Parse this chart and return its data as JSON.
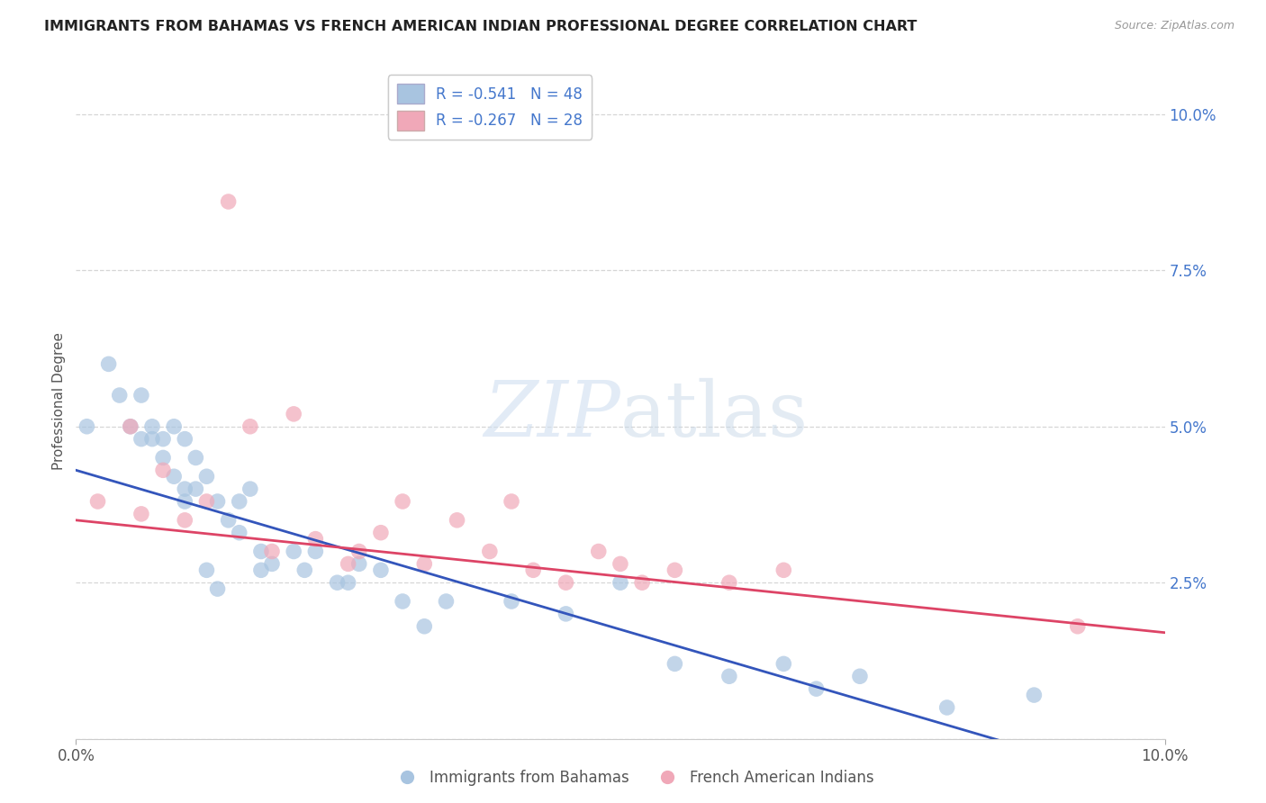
{
  "title": "IMMIGRANTS FROM BAHAMAS VS FRENCH AMERICAN INDIAN PROFESSIONAL DEGREE CORRELATION CHART",
  "source": "Source: ZipAtlas.com",
  "ylabel": "Professional Degree",
  "blue_R": -0.541,
  "blue_N": 48,
  "pink_R": -0.267,
  "pink_N": 28,
  "blue_color": "#a8c4e0",
  "pink_color": "#f0a8b8",
  "blue_line_color": "#3355bb",
  "pink_line_color": "#dd4466",
  "legend_label_blue": "Immigrants from Bahamas",
  "legend_label_pink": "French American Indians",
  "blue_scatter_x": [
    0.001,
    0.003,
    0.004,
    0.005,
    0.006,
    0.006,
    0.007,
    0.007,
    0.008,
    0.008,
    0.009,
    0.009,
    0.01,
    0.01,
    0.01,
    0.011,
    0.011,
    0.012,
    0.012,
    0.013,
    0.013,
    0.014,
    0.015,
    0.015,
    0.016,
    0.017,
    0.017,
    0.018,
    0.02,
    0.021,
    0.022,
    0.024,
    0.025,
    0.026,
    0.028,
    0.03,
    0.032,
    0.034,
    0.04,
    0.045,
    0.05,
    0.055,
    0.06,
    0.065,
    0.068,
    0.072,
    0.08,
    0.088
  ],
  "blue_scatter_y": [
    0.05,
    0.06,
    0.055,
    0.05,
    0.048,
    0.055,
    0.048,
    0.05,
    0.048,
    0.045,
    0.05,
    0.042,
    0.048,
    0.04,
    0.038,
    0.045,
    0.04,
    0.042,
    0.027,
    0.038,
    0.024,
    0.035,
    0.038,
    0.033,
    0.04,
    0.027,
    0.03,
    0.028,
    0.03,
    0.027,
    0.03,
    0.025,
    0.025,
    0.028,
    0.027,
    0.022,
    0.018,
    0.022,
    0.022,
    0.02,
    0.025,
    0.012,
    0.01,
    0.012,
    0.008,
    0.01,
    0.005,
    0.007
  ],
  "pink_scatter_x": [
    0.002,
    0.005,
    0.006,
    0.008,
    0.01,
    0.012,
    0.014,
    0.016,
    0.018,
    0.02,
    0.022,
    0.025,
    0.026,
    0.028,
    0.03,
    0.032,
    0.035,
    0.038,
    0.04,
    0.042,
    0.045,
    0.048,
    0.05,
    0.052,
    0.055,
    0.06,
    0.065,
    0.092
  ],
  "pink_scatter_y": [
    0.038,
    0.05,
    0.036,
    0.043,
    0.035,
    0.038,
    0.086,
    0.05,
    0.03,
    0.052,
    0.032,
    0.028,
    0.03,
    0.033,
    0.038,
    0.028,
    0.035,
    0.03,
    0.038,
    0.027,
    0.025,
    0.03,
    0.028,
    0.025,
    0.027,
    0.025,
    0.027,
    0.018
  ],
  "xlim": [
    0.0,
    0.1
  ],
  "ylim": [
    0.0,
    0.108
  ],
  "yticks": [
    0.0,
    0.025,
    0.05,
    0.075,
    0.1
  ],
  "ytick_labels": [
    "",
    "2.5%",
    "5.0%",
    "7.5%",
    "10.0%"
  ],
  "xticks": [
    0.0,
    0.1
  ],
  "xtick_labels": [
    "0.0%",
    "10.0%"
  ]
}
